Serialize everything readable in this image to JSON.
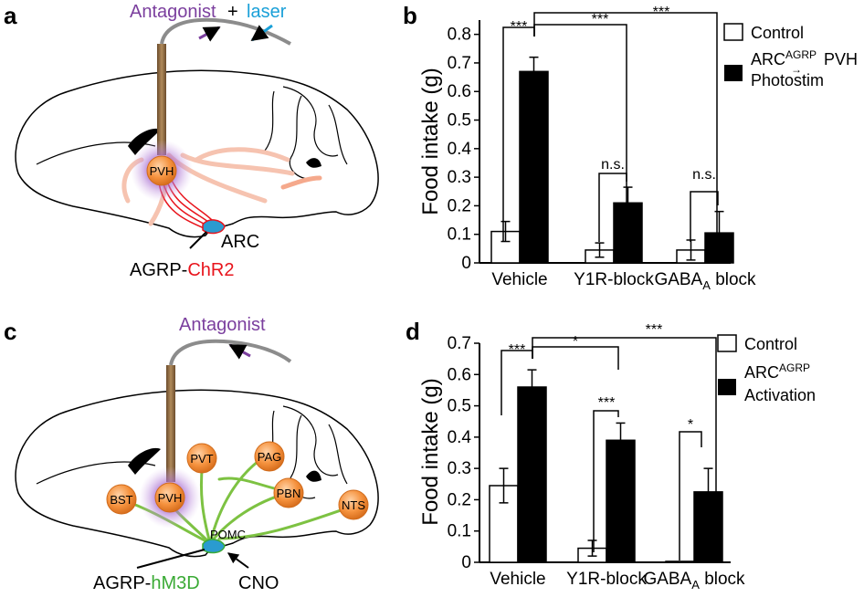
{
  "panels": {
    "a": {
      "letter": "a",
      "drug_label": "Antagonist",
      "plus": "+",
      "laser_label": "laser",
      "nuclei": [
        "PVH"
      ],
      "arc_label": "ARC",
      "line_prefix": "AGRP-",
      "line_suffix": "ChR2"
    },
    "c": {
      "letter": "c",
      "drug_label": "Antagonist",
      "nuclei": [
        "PVT",
        "PAG",
        "PBN",
        "NTS",
        "BST",
        "PVH"
      ],
      "pomc_label": "POMC",
      "line_prefix": "AGRP-",
      "line_suffix": "hM3D",
      "cno_label": "CNO"
    }
  },
  "colors": {
    "antagonist": "#7b3f9e",
    "laser": "#1aa0d8",
    "chr2": "#e8141c",
    "hm3d": "#3aaa35",
    "nucleus": "#f5923e",
    "halo": "#b887d6",
    "cannula": "#8b6a45",
    "projection_pink": "#f6c3b0",
    "projection_green": "#7dc242",
    "bar_control": "#ffffff",
    "bar_stim": "#000000"
  },
  "chart_data": [
    {
      "panel": "b",
      "type": "bar",
      "ylabel": "Food intake (g)",
      "ylim": [
        0,
        0.85
      ],
      "yticks": [
        "0",
        "0.1",
        "0.2",
        "0.3",
        "0.4",
        "0.5",
        "0.6",
        "0.7",
        "0.8"
      ],
      "categories": [
        "Vehicle",
        "Y1R-block",
        "GABA"
      ],
      "category_subscript": [
        "",
        "",
        "A"
      ],
      "category_tail": [
        "",
        "",
        " block"
      ],
      "series": [
        {
          "name": "Control",
          "values": [
            0.11,
            0.045,
            0.045
          ],
          "errors": [
            0.035,
            0.025,
            0.035
          ]
        },
        {
          "name": "ARC→PVH Photostim",
          "values": [
            0.67,
            0.21,
            0.105
          ],
          "errors": [
            0.05,
            0.055,
            0.075
          ]
        }
      ],
      "legend": {
        "control": "Control",
        "stim_prefix": "ARC",
        "stim_sup": "AGRP",
        "stim_arrow": "→",
        "stim_suffix": "PVH",
        "stim_line2": "Photostim"
      },
      "significance": [
        "***",
        "***",
        "***",
        "n.s.",
        "n.s."
      ]
    },
    {
      "panel": "d",
      "type": "bar",
      "ylabel": "Food intake (g)",
      "ylim": [
        0,
        0.7
      ],
      "yticks": [
        "0",
        "0.1",
        "0.2",
        "0.3",
        "0.4",
        "0.5",
        "0.6",
        "0.7"
      ],
      "categories": [
        "Vehicle",
        "Y1R-block",
        "GABA"
      ],
      "category_subscript": [
        "",
        "",
        "A"
      ],
      "category_tail": [
        "",
        "",
        " block"
      ],
      "series": [
        {
          "name": "Control",
          "values": [
            0.245,
            0.045,
            0.003
          ],
          "errors": [
            0.055,
            0.025,
            0.0
          ]
        },
        {
          "name": "ARC Activation",
          "values": [
            0.56,
            0.39,
            0.225
          ],
          "errors": [
            0.055,
            0.055,
            0.075
          ]
        }
      ],
      "legend": {
        "control": "Control",
        "stim_prefix": "ARC",
        "stim_sup": "AGRP",
        "stim_line2": "Activation"
      },
      "significance": [
        "***",
        "*",
        "***",
        "***",
        "*"
      ]
    }
  ]
}
